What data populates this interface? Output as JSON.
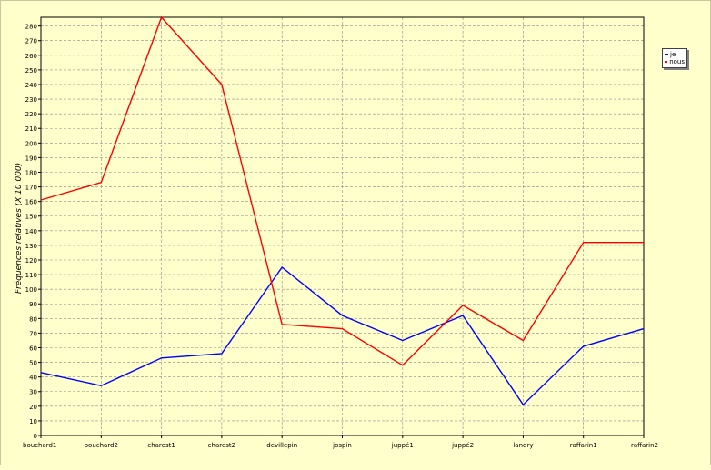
{
  "chart_data": {
    "type": "line",
    "categories": [
      "bouchard1",
      "bouchard2",
      "charest1",
      "charest2",
      "devillepin",
      "jospin",
      "juppé1",
      "juppé2",
      "landry",
      "raffarin1",
      "raffarin2"
    ],
    "series": [
      {
        "name": "je",
        "color": "#0000ff",
        "values": [
          43,
          34,
          53,
          56,
          115,
          82,
          65,
          82,
          21,
          61,
          73
        ]
      },
      {
        "name": "nous",
        "color": "#ff0000",
        "values": [
          161,
          173,
          286,
          240,
          76,
          73,
          48,
          89,
          65,
          132,
          132
        ]
      }
    ],
    "title": "",
    "xlabel": "",
    "ylabel": "Fréquences relatives (X 10 000)",
    "ylim": [
      0,
      286
    ],
    "yticks": [
      0,
      10,
      20,
      30,
      40,
      50,
      60,
      70,
      80,
      90,
      100,
      110,
      120,
      130,
      140,
      150,
      160,
      170,
      180,
      190,
      200,
      210,
      220,
      230,
      240,
      250,
      260,
      270,
      280
    ],
    "grid": true,
    "legend": "top-right"
  }
}
